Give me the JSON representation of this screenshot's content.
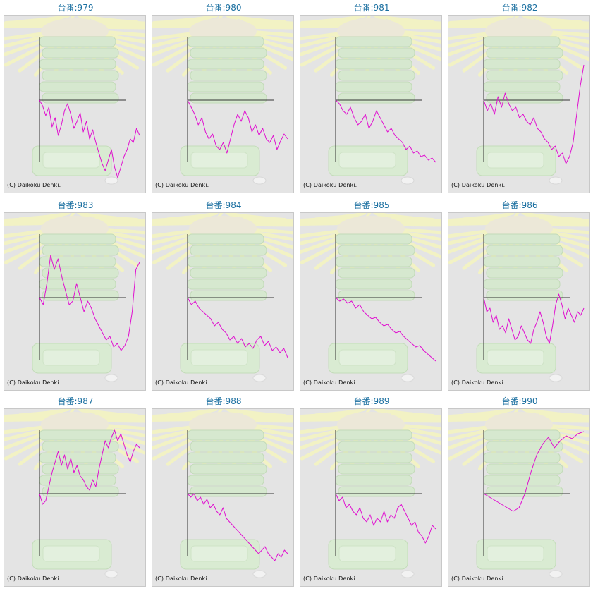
{
  "copyright": "(C) Daikoku Denki.",
  "line_color": "#e010d0",
  "chart_data": [
    {
      "type": "line",
      "title": "台番:979",
      "values": [
        0,
        -8,
        -22,
        -10,
        -38,
        -25,
        -50,
        -35,
        -15,
        -5,
        -20,
        -40,
        -30,
        -18,
        -45,
        -30,
        -55,
        -42,
        -60,
        -75,
        -90,
        -100,
        -85,
        -70,
        -95,
        -110,
        -95,
        -80,
        -70,
        -55,
        -60,
        -40,
        -50
      ]
    },
    {
      "type": "line",
      "title": "台番:980",
      "values": [
        0,
        -10,
        -20,
        -35,
        -25,
        -45,
        -55,
        -48,
        -65,
        -70,
        -60,
        -75,
        -55,
        -35,
        -20,
        -30,
        -15,
        -25,
        -45,
        -35,
        -50,
        -40,
        -55,
        -60,
        -50,
        -70,
        -58,
        -48,
        -55
      ]
    },
    {
      "type": "line",
      "title": "台番:981",
      "values": [
        0,
        -5,
        -15,
        -20,
        -10,
        -25,
        -35,
        -30,
        -20,
        -40,
        -30,
        -15,
        -25,
        -35,
        -45,
        -40,
        -50,
        -55,
        -60,
        -70,
        -65,
        -75,
        -72,
        -80,
        -78,
        -85,
        -82,
        -88
      ]
    },
    {
      "type": "line",
      "title": "台番:982",
      "values": [
        0,
        -15,
        -5,
        -20,
        5,
        -10,
        10,
        -5,
        -15,
        -10,
        -25,
        -20,
        -30,
        -35,
        -25,
        -40,
        -45,
        -55,
        -60,
        -70,
        -65,
        -80,
        -75,
        -90,
        -80,
        -60,
        -20,
        20,
        50
      ]
    },
    {
      "type": "line",
      "title": "台番:983",
      "values": [
        0,
        -10,
        20,
        60,
        40,
        55,
        30,
        10,
        -10,
        -5,
        20,
        0,
        -20,
        -5,
        -15,
        -30,
        -40,
        -50,
        -60,
        -55,
        -70,
        -65,
        -75,
        -68,
        -55,
        -20,
        40,
        50
      ]
    },
    {
      "type": "line",
      "title": "台番:984",
      "values": [
        0,
        -10,
        -5,
        -15,
        -20,
        -25,
        -30,
        -40,
        -35,
        -45,
        -50,
        -60,
        -55,
        -65,
        -58,
        -70,
        -65,
        -72,
        -60,
        -55,
        -68,
        -62,
        -75,
        -70,
        -78,
        -72,
        -85
      ]
    },
    {
      "type": "line",
      "title": "台番:985",
      "values": [
        0,
        -5,
        -2,
        -8,
        -5,
        -15,
        -10,
        -20,
        -25,
        -30,
        -28,
        -35,
        -40,
        -38,
        -45,
        -50,
        -48,
        -55,
        -60,
        -65,
        -70,
        -68,
        -75,
        -80,
        -85,
        -90
      ]
    },
    {
      "type": "line",
      "title": "台番:986",
      "values": [
        0,
        -20,
        -15,
        -35,
        -25,
        -45,
        -40,
        -50,
        -30,
        -45,
        -60,
        -55,
        -40,
        -50,
        -60,
        -65,
        -45,
        -35,
        -20,
        -35,
        -55,
        -65,
        -40,
        -10,
        5,
        -10,
        -30,
        -15,
        -25,
        -35,
        -20,
        -25,
        -15
      ]
    },
    {
      "type": "line",
      "title": "台番:987",
      "values": [
        0,
        -15,
        -10,
        10,
        30,
        45,
        60,
        40,
        55,
        35,
        50,
        30,
        40,
        25,
        20,
        10,
        5,
        20,
        10,
        35,
        55,
        75,
        65,
        80,
        90,
        75,
        85,
        70,
        55,
        45,
        60,
        70,
        65
      ]
    },
    {
      "type": "line",
      "title": "台番:988",
      "values": [
        0,
        -5,
        0,
        -10,
        -5,
        -15,
        -8,
        -20,
        -15,
        -25,
        -30,
        -20,
        -35,
        -40,
        -45,
        -50,
        -55,
        -60,
        -65,
        -70,
        -75,
        -80,
        -85,
        -80,
        -75,
        -85,
        -90,
        -95,
        -85,
        -90,
        -80,
        -85
      ]
    },
    {
      "type": "line",
      "title": "台番:989",
      "values": [
        0,
        -10,
        -5,
        -20,
        -15,
        -25,
        -30,
        -20,
        -35,
        -40,
        -30,
        -45,
        -35,
        -40,
        -25,
        -40,
        -30,
        -35,
        -20,
        -15,
        -25,
        -35,
        -45,
        -40,
        -55,
        -60,
        -70,
        -60,
        -45,
        -50
      ]
    },
    {
      "type": "line",
      "title": "台番:990",
      "values": [
        0,
        -5,
        -10,
        -15,
        -20,
        -25,
        -20,
        0,
        30,
        55,
        70,
        80,
        65,
        75,
        82,
        78,
        85,
        88
      ]
    }
  ]
}
